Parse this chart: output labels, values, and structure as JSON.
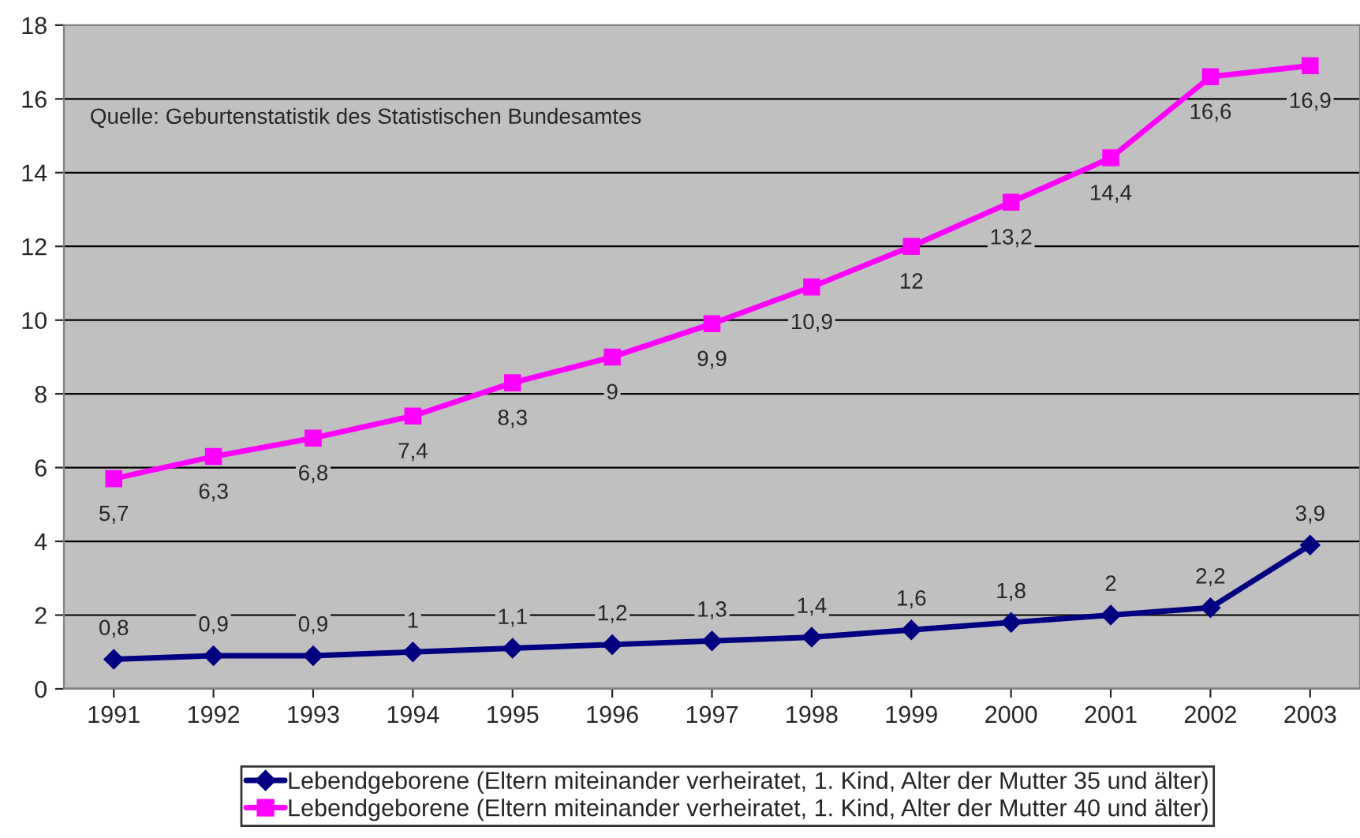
{
  "chart_data": {
    "type": "line",
    "categories": [
      "1991",
      "1992",
      "1993",
      "1994",
      "1995",
      "1996",
      "1997",
      "1998",
      "1999",
      "2000",
      "2001",
      "2002",
      "2003"
    ],
    "series": [
      {
        "name": "Lebendgeborene (Eltern miteinander verheiratet, 1. Kind, Alter der Mutter 35 und älter)",
        "color": "#000080",
        "marker": "diamond",
        "values": [
          0.8,
          0.9,
          0.9,
          1,
          1.1,
          1.2,
          1.3,
          1.4,
          1.6,
          1.8,
          2,
          2.2,
          3.9
        ],
        "value_labels": [
          "0,8",
          "0,9",
          "0,9",
          "1",
          "1,1",
          "1,2",
          "1,3",
          "1,4",
          "1,6",
          "1,8",
          "2",
          "2,2",
          "3,9"
        ]
      },
      {
        "name": "Lebendgeborene (Eltern miteinander verheiratet, 1. Kind, Alter der Mutter 40 und älter)",
        "color": "#ff00ff",
        "marker": "square",
        "values": [
          5.7,
          6.3,
          6.8,
          7.4,
          8.3,
          9,
          9.9,
          10.9,
          12,
          13.2,
          14.4,
          16.6,
          16.9
        ],
        "value_labels": [
          "5,7",
          "6,3",
          "6,8",
          "7,4",
          "8,3",
          "9",
          "9,9",
          "10,9",
          "12",
          "13,2",
          "14,4",
          "16,6",
          "16,9"
        ]
      }
    ],
    "ylim": [
      0,
      18
    ],
    "yticks": [
      0,
      2,
      4,
      6,
      8,
      10,
      12,
      14,
      16,
      18
    ],
    "grid": "y",
    "legend": "bottom",
    "annotations": [
      "Quelle: Geburtenstatistik des Statistischen Bundesamtes"
    ]
  }
}
